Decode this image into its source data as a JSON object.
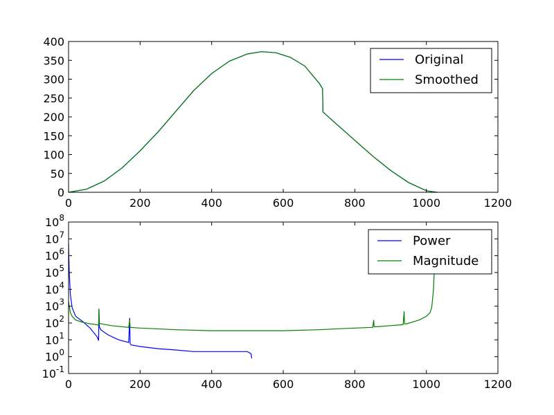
{
  "chart_data": [
    {
      "type": "line",
      "title": "",
      "xlabel": "",
      "ylabel": "",
      "xlim": [
        0,
        1200
      ],
      "ylim": [
        0,
        400
      ],
      "xticks": [
        "0",
        "200",
        "400",
        "600",
        "800",
        "1000",
        "1200"
      ],
      "yticks": [
        "0",
        "50",
        "100",
        "150",
        "200",
        "250",
        "300",
        "350",
        "400"
      ],
      "grid": false,
      "legend_placement": "top-right",
      "series": [
        {
          "name": "Original",
          "color": "#0000ff",
          "x": [
            0,
            50,
            100,
            150,
            200,
            250,
            300,
            350,
            400,
            450,
            500,
            540,
            580,
            620,
            660,
            700,
            710,
            711,
            750,
            800,
            850,
            900,
            950,
            1000,
            1030
          ],
          "y": [
            0,
            8,
            30,
            65,
            110,
            160,
            215,
            270,
            315,
            348,
            367,
            373,
            370,
            358,
            335,
            290,
            275,
            213,
            180,
            138,
            96,
            58,
            26,
            4,
            0
          ]
        },
        {
          "name": "Smoothed",
          "color": "#007f00",
          "x": [
            0,
            50,
            100,
            150,
            200,
            250,
            300,
            350,
            400,
            450,
            500,
            540,
            580,
            620,
            660,
            700,
            710,
            711,
            750,
            800,
            850,
            900,
            950,
            1000,
            1030
          ],
          "y": [
            0,
            8,
            30,
            65,
            110,
            160,
            215,
            270,
            315,
            348,
            367,
            373,
            370,
            358,
            335,
            290,
            275,
            213,
            180,
            138,
            96,
            58,
            26,
            4,
            0
          ]
        }
      ]
    },
    {
      "type": "line",
      "title": "",
      "xlabel": "",
      "ylabel": "",
      "yscale": "log",
      "xlim": [
        0,
        1200
      ],
      "ylim": [
        0.1,
        100000000
      ],
      "xticks": [
        "0",
        "200",
        "400",
        "600",
        "800",
        "1000",
        "1200"
      ],
      "yticks": [
        {
          "base": "10",
          "exp": "8"
        },
        {
          "base": "10",
          "exp": "7"
        },
        {
          "base": "10",
          "exp": "6"
        },
        {
          "base": "10",
          "exp": "5"
        },
        {
          "base": "10",
          "exp": "4"
        },
        {
          "base": "10",
          "exp": "3"
        },
        {
          "base": "10",
          "exp": "2"
        },
        {
          "base": "10",
          "exp": "1"
        },
        {
          "base": "10",
          "exp": "0"
        },
        {
          "base": "10",
          "exp": "-1"
        }
      ],
      "grid": false,
      "legend_placement": "top-right",
      "series": [
        {
          "name": "Power",
          "color": "#0000ff",
          "x": [
            0,
            2,
            5,
            10,
            20,
            40,
            60,
            80,
            84,
            85,
            86,
            90,
            110,
            140,
            168,
            171,
            172,
            175,
            200,
            250,
            300,
            350,
            400,
            450,
            500,
            510,
            512
          ],
          "y": [
            5000000,
            100000,
            5000,
            800,
            250,
            120,
            50,
            15,
            9,
            700,
            60,
            40,
            20,
            10,
            7,
            200,
            6,
            5,
            4,
            3,
            2.5,
            2,
            2,
            2,
            2,
            1.5,
            0.8
          ]
        },
        {
          "name": "Magnitude",
          "color": "#007f00",
          "x": [
            0,
            2,
            5,
            10,
            20,
            40,
            60,
            80,
            84,
            85,
            86,
            90,
            120,
            168,
            171,
            172,
            200,
            300,
            400,
            500,
            600,
            700,
            800,
            850,
            853,
            854,
            860,
            900,
            935,
            938,
            939,
            945,
            980,
            1000,
            1010,
            1015,
            1020,
            1022
          ],
          "y": [
            2000,
            1000,
            400,
            250,
            150,
            110,
            90,
            80,
            70,
            700,
            100,
            90,
            70,
            55,
            150,
            55,
            50,
            40,
            35,
            35,
            35,
            40,
            50,
            55,
            150,
            60,
            60,
            70,
            80,
            500,
            90,
            90,
            150,
            250,
            400,
            800,
            10000,
            100000
          ]
        }
      ]
    }
  ]
}
